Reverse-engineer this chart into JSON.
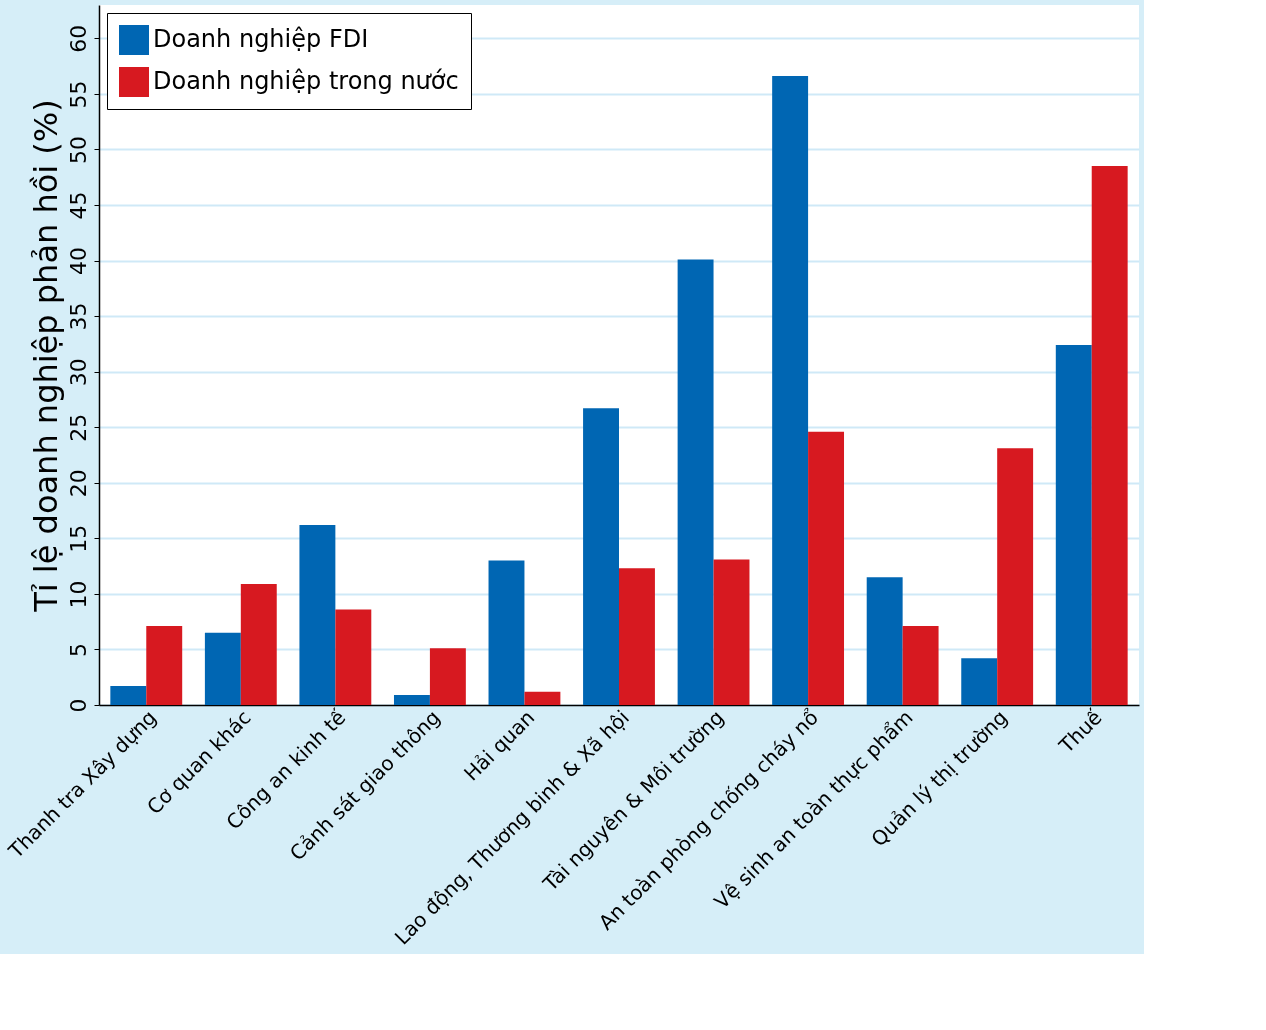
{
  "chart_data": {
    "type": "bar",
    "ylabel": "Tỉ lệ doanh nghiệp phản hồi (%)",
    "categories": [
      "Thanh tra Xây dựng",
      "Cơ quan khác",
      "Công an kinh tế",
      "Cảnh sát giao thông",
      "Hải quan",
      "Lao động, Thương binh & Xã hội",
      "Tài nguyên & Môi trường",
      "An toàn phòng chống cháy nổ",
      "Vệ sinh an toàn thực phẩm",
      "Quản lý thị trường",
      "Thuế"
    ],
    "series": [
      {
        "name": "Doanh nghiệp FDI",
        "color": "#0066b3",
        "values": [
          1.7,
          6.5,
          16.2,
          0.9,
          13.0,
          26.7,
          40.1,
          56.6,
          11.5,
          4.2,
          32.4
        ]
      },
      {
        "name": "Doanh nghiệp trong nước",
        "color": "#d71920",
        "values": [
          7.1,
          10.9,
          8.6,
          5.1,
          1.2,
          12.3,
          13.1,
          24.6,
          7.1,
          23.1,
          48.5
        ]
      }
    ],
    "ylim": [
      0,
      63
    ],
    "yticks": [
      0,
      5,
      10,
      15,
      20,
      25,
      30,
      35,
      40,
      45,
      50,
      55,
      60
    ],
    "grid": "y",
    "legend": "top left"
  }
}
